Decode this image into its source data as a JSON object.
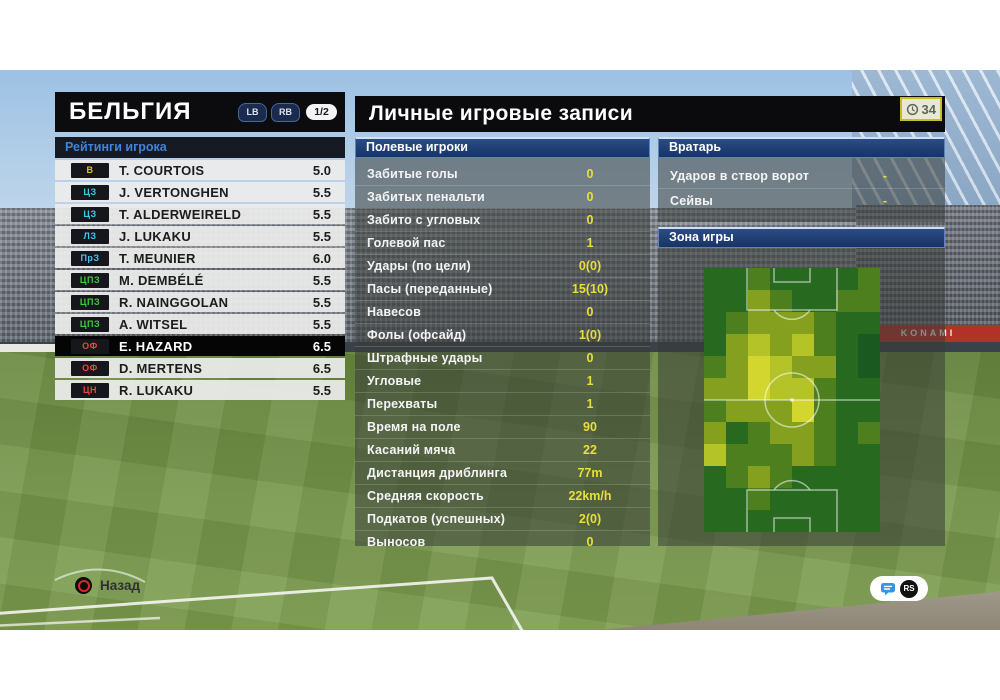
{
  "team_panel": {
    "title": "БЕЛЬГИЯ",
    "prev_button": "LB",
    "next_button": "RB",
    "page_indicator": "1/2",
    "section_title": "Рейтинги игрока",
    "players": [
      {
        "pos": "В",
        "group": "gk",
        "name": "T. COURTOIS",
        "rating": "5.0",
        "selected": false
      },
      {
        "pos": "ЦЗ",
        "group": "df",
        "name": "J. VERTONGHEN",
        "rating": "5.5",
        "selected": false
      },
      {
        "pos": "ЦЗ",
        "group": "df",
        "name": "T. ALDERWEIRELD",
        "rating": "5.5",
        "selected": false
      },
      {
        "pos": "ЛЗ",
        "group": "df",
        "name": "J. LUKAKU",
        "rating": "5.5",
        "selected": false
      },
      {
        "pos": "ПрЗ",
        "group": "df",
        "name": "T. MEUNIER",
        "rating": "6.0",
        "selected": false
      },
      {
        "pos": "ЦПЗ",
        "group": "mf",
        "name": "M. DEMBÉLÉ",
        "rating": "5.5",
        "selected": false
      },
      {
        "pos": "ЦПЗ",
        "group": "mf",
        "name": "R. NAINGGOLAN",
        "rating": "5.5",
        "selected": false
      },
      {
        "pos": "ЦПЗ",
        "group": "mf",
        "name": "A. WITSEL",
        "rating": "5.5",
        "selected": false
      },
      {
        "pos": "ОФ",
        "group": "fw",
        "name": "E. HAZARD",
        "rating": "6.5",
        "selected": true
      },
      {
        "pos": "ОФ",
        "group": "fw",
        "name": "D. MERTENS",
        "rating": "6.5",
        "selected": false
      },
      {
        "pos": "ЦН",
        "group": "fw",
        "name": "R. LUKAKU",
        "rating": "5.5",
        "selected": false
      }
    ]
  },
  "records_panel": {
    "title": "Личные игровые записи",
    "time_badge": "34",
    "field_players": {
      "title": "Полевые игроки",
      "stats": [
        {
          "label": "Забитые голы",
          "value": "0"
        },
        {
          "label": "Забитых пенальти",
          "value": "0"
        },
        {
          "label": "Забито с угловых",
          "value": "0"
        },
        {
          "label": "Голевой пас",
          "value": "1"
        },
        {
          "label": "Удары (по цели)",
          "value": "0(0)"
        },
        {
          "label": "Пасы (переданные)",
          "value": "15(10)"
        },
        {
          "label": "Навесов",
          "value": "0"
        },
        {
          "label": "Фолы (офсайд)",
          "value": "1(0)"
        },
        {
          "label": "Штрафные удары",
          "value": "0"
        },
        {
          "label": "Угловые",
          "value": "1"
        },
        {
          "label": "Перехваты",
          "value": "1"
        },
        {
          "label": "Время на поле",
          "value": "90"
        },
        {
          "label": "Касаний мяча",
          "value": "22"
        },
        {
          "label": "Дистанция дриблинга",
          "value": "77m"
        },
        {
          "label": "Средняя скорость",
          "value": "22km/h"
        },
        {
          "label": "Подкатов (успешных)",
          "value": "2(0)"
        },
        {
          "label": "Выносов",
          "value": "0"
        }
      ]
    },
    "goalkeeper": {
      "title": "Вратарь",
      "stats": [
        {
          "label": "Ударов в створ ворот",
          "value": "-"
        },
        {
          "label": "Сейвы",
          "value": "-"
        }
      ]
    },
    "zone": {
      "title": "Зона игры"
    }
  },
  "heatmap": {
    "cols": 8,
    "rows": 12,
    "palette": [
      "#1a5a20",
      "#27691f",
      "#4e7f1e",
      "#85a01e",
      "#b3c328",
      "#d2d62f"
    ],
    "cells": [
      [
        1,
        1,
        2,
        1,
        1,
        1,
        1,
        2
      ],
      [
        1,
        1,
        3,
        2,
        1,
        1,
        2,
        2
      ],
      [
        1,
        2,
        3,
        3,
        3,
        2,
        1,
        1
      ],
      [
        1,
        3,
        4,
        3,
        4,
        2,
        1,
        0
      ],
      [
        2,
        3,
        5,
        4,
        3,
        3,
        1,
        0
      ],
      [
        3,
        3,
        5,
        4,
        4,
        2,
        1,
        1
      ],
      [
        2,
        3,
        3,
        3,
        5,
        2,
        1,
        1
      ],
      [
        3,
        1,
        2,
        3,
        3,
        2,
        1,
        2
      ],
      [
        4,
        2,
        2,
        2,
        3,
        2,
        1,
        1
      ],
      [
        1,
        2,
        3,
        2,
        1,
        1,
        1,
        1
      ],
      [
        1,
        1,
        2,
        1,
        1,
        1,
        1,
        1
      ],
      [
        1,
        1,
        1,
        1,
        1,
        1,
        1,
        1
      ]
    ],
    "line_color": "rgba(255,255,255,0.55)"
  },
  "footer": {
    "back_label": "Назад",
    "rs_label": "RS"
  },
  "background": {
    "banners": [
      "KONAMI",
      "KONAMI"
    ]
  },
  "colors": {
    "value_yellow": "#e9df3b",
    "header_blue": "#173463",
    "accent_blue": "#4183d6"
  }
}
